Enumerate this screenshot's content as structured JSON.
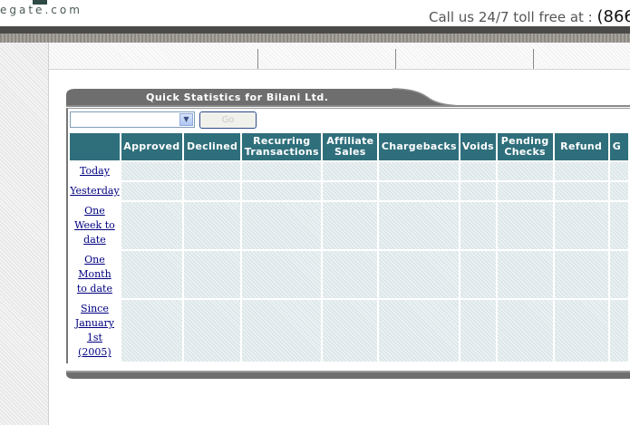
{
  "header": {
    "logo_text": "egate.com",
    "call_text": "Call us 24/7 toll free at :",
    "phone": "(866"
  },
  "nav": {
    "items": [
      "",
      "",
      "",
      ""
    ]
  },
  "panel": {
    "title": "Quick Statistics for Bilani Ltd.",
    "select_value": "",
    "go_label": "Go"
  },
  "table": {
    "columns": [
      {
        "label": "Approved"
      },
      {
        "label": "Declined"
      },
      {
        "label": "Recurring Transactions"
      },
      {
        "label": "Affiliate Sales"
      },
      {
        "label": "Chargebacks"
      },
      {
        "label": "Voids"
      },
      {
        "label": "Pending Checks"
      },
      {
        "label": "Refund"
      },
      {
        "label": "G"
      }
    ],
    "rows": [
      {
        "label": "Today",
        "values": [
          "",
          "",
          "",
          "",
          "",
          "",
          "",
          "",
          ""
        ]
      },
      {
        "label": "Yesterday",
        "values": [
          "",
          "",
          "",
          "",
          "",
          "",
          "",
          "",
          ""
        ]
      },
      {
        "label": "One Week to date",
        "values": [
          "",
          "",
          "",
          "",
          "",
          "",
          "",
          "",
          ""
        ]
      },
      {
        "label": "One Month to date",
        "values": [
          "",
          "",
          "",
          "",
          "",
          "",
          "",
          "",
          ""
        ]
      },
      {
        "label": "Since January 1st (2005)",
        "values": [
          "",
          "",
          "",
          "",
          "",
          "",
          "",
          "",
          ""
        ]
      }
    ]
  },
  "colors": {
    "header_teal": "#2f6f7c",
    "panel_gray": "#6e6e6e",
    "link_navy": "#000080"
  }
}
